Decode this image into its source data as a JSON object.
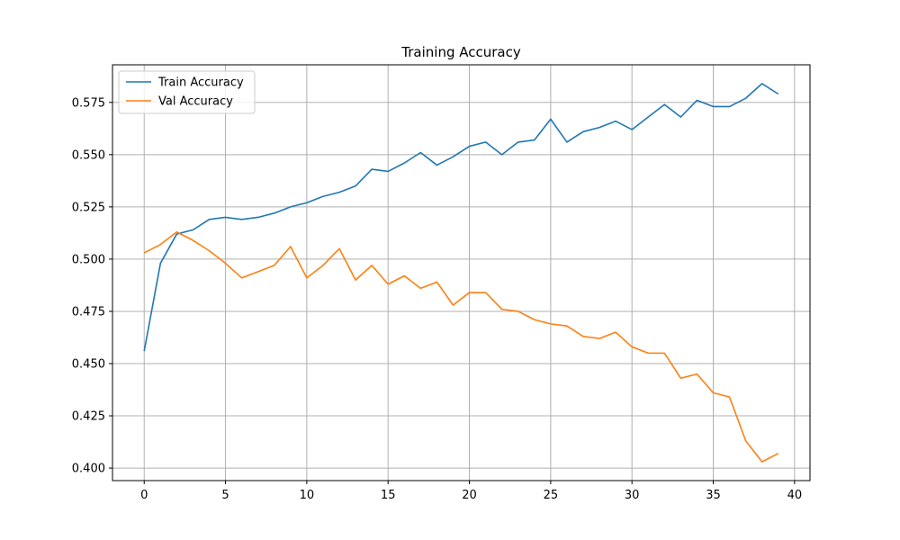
{
  "chart_data": {
    "type": "line",
    "title": "Training Accuracy",
    "xlabel": "",
    "ylabel": "",
    "xlim": [
      -1.95,
      40.95
    ],
    "ylim": [
      0.394,
      0.593
    ],
    "x_ticks": [
      0,
      5,
      10,
      15,
      20,
      25,
      30,
      35,
      40
    ],
    "y_ticks": [
      0.4,
      0.425,
      0.45,
      0.475,
      0.5,
      0.525,
      0.55,
      0.575
    ],
    "y_tick_labels": [
      "0.400",
      "0.425",
      "0.450",
      "0.475",
      "0.500",
      "0.525",
      "0.550",
      "0.575"
    ],
    "x_tick_labels": [
      "0",
      "5",
      "10",
      "15",
      "20",
      "25",
      "30",
      "35",
      "40"
    ],
    "grid": true,
    "legend_position": "top-left",
    "x": [
      0,
      1,
      2,
      3,
      4,
      5,
      6,
      7,
      8,
      9,
      10,
      11,
      12,
      13,
      14,
      15,
      16,
      17,
      18,
      19,
      20,
      21,
      22,
      23,
      24,
      25,
      26,
      27,
      28,
      29,
      30,
      31,
      32,
      33,
      34,
      35,
      36,
      37,
      38,
      39
    ],
    "series": [
      {
        "name": "Train Accuracy",
        "color": "#1f77b4",
        "values": [
          0.456,
          0.498,
          0.512,
          0.514,
          0.519,
          0.52,
          0.519,
          0.52,
          0.522,
          0.525,
          0.527,
          0.53,
          0.532,
          0.535,
          0.543,
          0.542,
          0.546,
          0.551,
          0.545,
          0.549,
          0.554,
          0.556,
          0.55,
          0.556,
          0.557,
          0.567,
          0.556,
          0.561,
          0.563,
          0.566,
          0.562,
          0.568,
          0.574,
          0.568,
          0.576,
          0.573,
          0.573,
          0.577,
          0.584,
          0.579
        ]
      },
      {
        "name": "Val Accuracy",
        "color": "#ff7f0e",
        "values": [
          0.503,
          0.507,
          0.513,
          0.509,
          0.504,
          0.498,
          0.491,
          0.494,
          0.497,
          0.506,
          0.491,
          0.497,
          0.505,
          0.49,
          0.497,
          0.488,
          0.492,
          0.486,
          0.489,
          0.478,
          0.484,
          0.484,
          0.476,
          0.475,
          0.471,
          0.469,
          0.468,
          0.463,
          0.462,
          0.465,
          0.458,
          0.455,
          0.455,
          0.443,
          0.445,
          0.436,
          0.434,
          0.413,
          0.403,
          0.407
        ]
      }
    ]
  }
}
